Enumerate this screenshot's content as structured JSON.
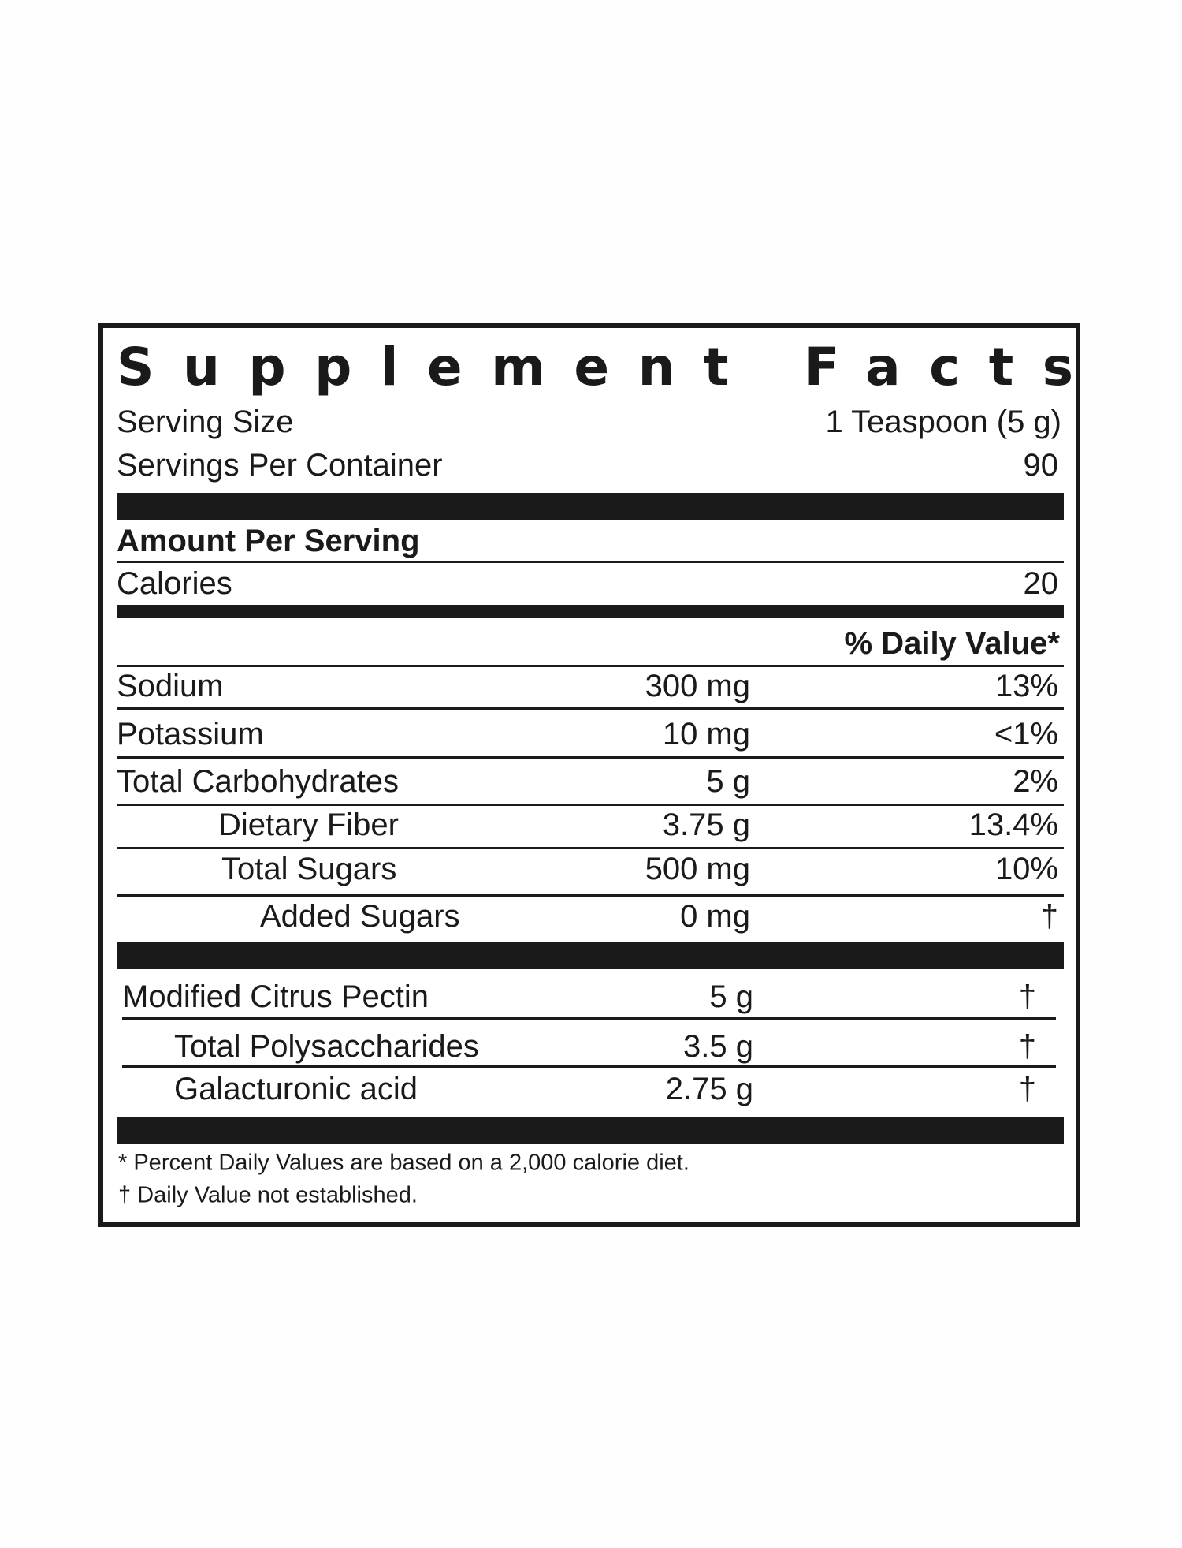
{
  "header": {
    "title": "Supplement Facts",
    "serving_size_label": "Serving Size",
    "serving_size": "1 Teaspoon (5 g)",
    "servings_label": "Servings Per Container",
    "servings": "90"
  },
  "amount_per_serving": "Amount Per Serving",
  "calories_label": "Calories",
  "calories": "20",
  "daily_value_header": "% Daily Value*",
  "nutrients": [
    [
      "Sodium",
      "300 mg",
      "13%"
    ],
    [
      "Potassium",
      "10 mg",
      "<1%"
    ],
    [
      "Total Carbohydrates",
      "5 g",
      "2%"
    ],
    [
      "Dietary Fiber",
      "3.75 g",
      "13.4%"
    ],
    [
      "Total Sugars",
      "500 mg",
      "10%"
    ],
    [
      "Added Sugars",
      "0 mg",
      "†"
    ]
  ],
  "ingredients": [
    [
      "Modified Citrus Pectin",
      "5 g",
      "†"
    ],
    [
      "Total Polysaccharides",
      "3.5 g",
      "†"
    ],
    [
      "Galacturonic acid",
      "2.75 g",
      "†"
    ]
  ],
  "footnotes": [
    "* Percent Daily Values are based on a 2,000 calorie diet.",
    "† Daily Value not established."
  ]
}
